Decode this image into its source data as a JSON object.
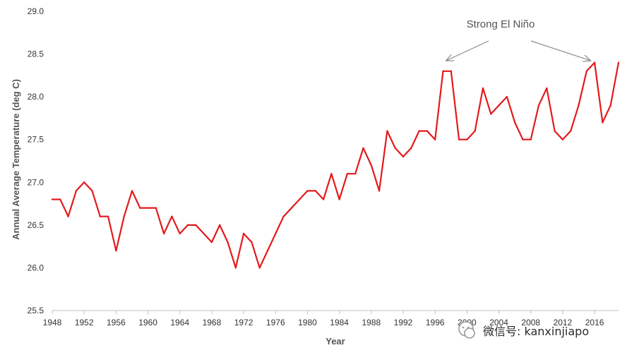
{
  "chart_data": {
    "type": "line",
    "title": "",
    "xlabel": "Year",
    "ylabel": "Annual Average Temperature (deg C)",
    "xlim": [
      1948,
      2019
    ],
    "ylim": [
      25.5,
      29.0
    ],
    "y_ticks": [
      "25.5",
      "26.0",
      "26.5",
      "27.0",
      "27.5",
      "28.0",
      "28.5",
      "29.0"
    ],
    "x_ticks": [
      "1948",
      "1952",
      "1956",
      "1960",
      "1964",
      "1968",
      "1972",
      "1976",
      "1980",
      "1984",
      "1988",
      "1992",
      "1996",
      "2000",
      "2004",
      "2008",
      "2012",
      "2016"
    ],
    "grid": false,
    "legend": "none",
    "line_color": "#e31a1c",
    "series": [
      {
        "x": [
          1948,
          1949,
          1950,
          1951,
          1952,
          1953,
          1954,
          1955,
          1956,
          1957,
          1958,
          1959,
          1960,
          1961,
          1962,
          1963,
          1964,
          1965,
          1966,
          1967,
          1968,
          1969,
          1970,
          1971,
          1972,
          1973,
          1974,
          1975,
          1976,
          1977,
          1978,
          1979,
          1980,
          1981,
          1982,
          1983,
          1984,
          1985,
          1986,
          1987,
          1988,
          1989,
          1990,
          1991,
          1992,
          1993,
          1994,
          1995,
          1996,
          1997,
          1998,
          1999,
          2000,
          2001,
          2002,
          2003,
          2004,
          2005,
          2006,
          2007,
          2008,
          2009,
          2010,
          2011,
          2012,
          2013,
          2014,
          2015,
          2016,
          2017,
          2018,
          2019
        ],
        "values": [
          26.8,
          26.8,
          26.6,
          26.9,
          27.0,
          26.9,
          26.6,
          26.6,
          26.2,
          26.6,
          26.9,
          26.7,
          26.7,
          26.7,
          26.4,
          26.6,
          26.4,
          26.5,
          26.5,
          26.4,
          26.3,
          26.5,
          26.3,
          26.0,
          26.4,
          26.3,
          26.0,
          26.2,
          26.4,
          26.6,
          26.7,
          26.8,
          26.9,
          26.9,
          26.8,
          27.1,
          26.8,
          27.1,
          27.1,
          27.4,
          27.2,
          26.9,
          27.6,
          27.4,
          27.3,
          27.4,
          27.6,
          27.6,
          27.5,
          28.3,
          28.3,
          27.5,
          27.5,
          27.6,
          28.1,
          27.8,
          27.9,
          28.0,
          27.7,
          27.5,
          27.5,
          27.9,
          28.1,
          27.6,
          27.5,
          27.6,
          27.9,
          28.3,
          28.4,
          27.7,
          27.9,
          28.4
        ]
      }
    ],
    "annotations": [
      {
        "text": "Strong El Niño",
        "arrows_to": [
          1997,
          2015
        ]
      }
    ]
  },
  "watermark": {
    "icon": "wechat-icon",
    "text": "微信号: kanxinjiapo"
  }
}
